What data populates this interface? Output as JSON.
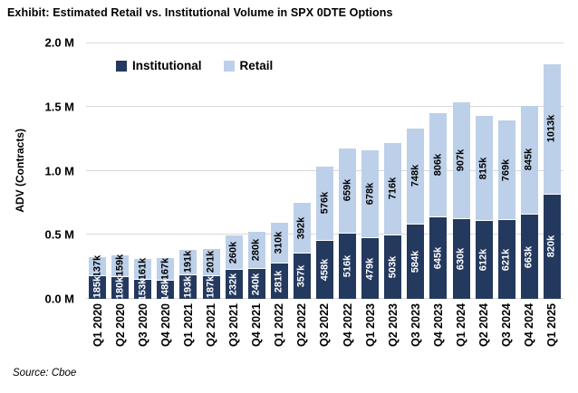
{
  "title": "Exhibit: Estimated Retail vs. Institutional Volume in SPX 0DTE Options",
  "source": "Source: Cboe",
  "colors": {
    "institutional": "#24395E",
    "retail": "#BDD0E9",
    "gridline": "#D9D9D9",
    "background": "#FFFFFF",
    "institutional_label_text": "#FFFFFF",
    "retail_label_text": "#000000"
  },
  "chart_data": {
    "type": "bar",
    "stacked": true,
    "title": "Exhibit: Estimated Retail vs. Institutional Volume in SPX 0DTE Options",
    "xlabel": "",
    "ylabel": "ADV (Contracts)",
    "ylim": [
      0,
      2000000
    ],
    "ytick_labels": [
      "0.0 M",
      "0.5 M",
      "1.0 M",
      "1.5 M",
      "2.0 M"
    ],
    "grid": true,
    "legend_position": "top-left-inside",
    "values_unit": "thousands of contracts (k)",
    "categories": [
      "Q1 2020",
      "Q2 2020",
      "Q3 2020",
      "Q4 2020",
      "Q1 2021",
      "Q2 2021",
      "Q3 2021",
      "Q4 2021",
      "Q1 2022",
      "Q2 2022",
      "Q3 2022",
      "Q4 2022",
      "Q1 2023",
      "Q2 2023",
      "Q3 2023",
      "Q4 2023",
      "Q1 2024",
      "Q2 2024",
      "Q3 2024",
      "Q4 2024",
      "Q1 2025"
    ],
    "series": [
      {
        "name": "Institutional",
        "color": "#24395E",
        "label_text_color": "#FFFFFF",
        "values_k": [
          185,
          180,
          153,
          148,
          193,
          187,
          232,
          240,
          281,
          357,
          458,
          516,
          479,
          503,
          584,
          645,
          630,
          612,
          621,
          663,
          820
        ],
        "labels": [
          "185k",
          "180k",
          "153k",
          "148k",
          "193k",
          "187k",
          "232k",
          "240k",
          "281k",
          "357k",
          "458k",
          "516k",
          "479k",
          "503k",
          "584k",
          "645k",
          "630k",
          "612k",
          "621k",
          "663k",
          "820k"
        ]
      },
      {
        "name": "Retail",
        "color": "#BDD0E9",
        "label_text_color": "#000000",
        "values_k": [
          137,
          159,
          161,
          167,
          191,
          201,
          260,
          280,
          310,
          392,
          576,
          659,
          678,
          716,
          748,
          806,
          907,
          815,
          769,
          845,
          1013
        ],
        "labels": [
          "137k",
          "159k",
          "161k",
          "167k",
          "191k",
          "201k",
          "260k",
          "280k",
          "310k",
          "392k",
          "576k",
          "659k",
          "678k",
          "716k",
          "748k",
          "806k",
          "907k",
          "815k",
          "769k",
          "845k",
          "1013k"
        ]
      }
    ]
  }
}
